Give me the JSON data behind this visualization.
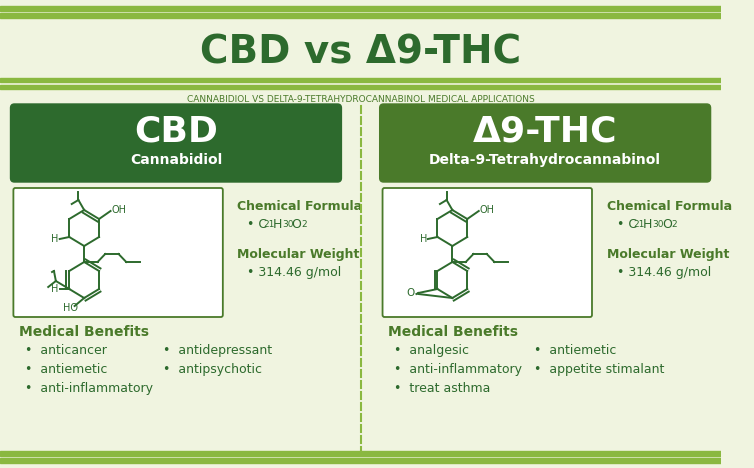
{
  "bg_color": "#f0f4e0",
  "dark_green": "#2d6a2d",
  "medium_green": "#4a7a2a",
  "light_green_line": "#8ab840",
  "title": "CBD vs Δ9-THC",
  "subtitle": "CANNABIDIOL VS DELTA-9-TETRAHYDROCANNABINOL MEDICAL APPLICATIONS",
  "cbd_title": "CBD",
  "cbd_subtitle": "Cannabidiol",
  "thc_title": "Δ9-THC",
  "thc_subtitle": "Delta-9-Tetrahydrocannabinol",
  "chem_formula_label": "Chemical Formula",
  "mol_weight_label": "Molecular Weight",
  "cbd_mol_weight": "314.46 g/mol",
  "thc_mol_weight": "314.46 g/mol",
  "med_benefits_label": "Medical Benefits",
  "cbd_benefits_col1": [
    "anticancer",
    "antiemetic",
    "anti-inflammatory"
  ],
  "cbd_benefits_col2": [
    "antidepressant",
    "antipsychotic"
  ],
  "thc_benefits_col1": [
    "analgesic",
    "anti-inflammatory",
    "treat asthma"
  ],
  "thc_benefits_col2": [
    "antiemetic",
    "appetite stimalant"
  ]
}
